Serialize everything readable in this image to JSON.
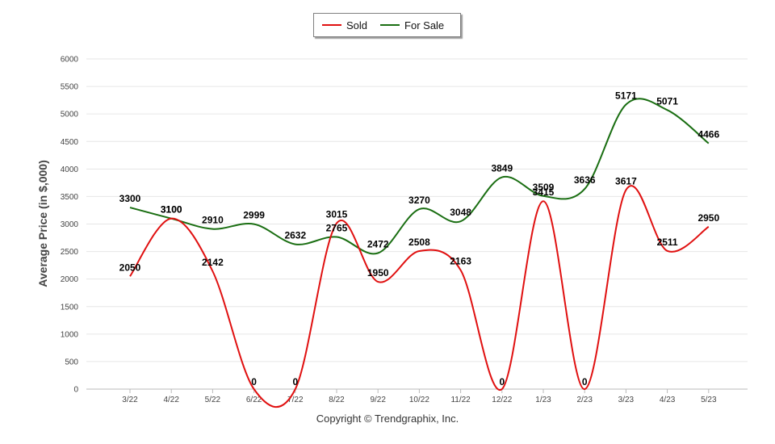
{
  "chart_data": {
    "type": "line",
    "title": "",
    "xlabel": "",
    "ylabel": "Average Price (in $,000)",
    "ylim": [
      0,
      6000
    ],
    "yticks": [
      0,
      500,
      1000,
      1500,
      2000,
      2500,
      3000,
      3500,
      4000,
      4500,
      5000,
      5500,
      6000
    ],
    "categories": [
      "3/22",
      "4/22",
      "5/22",
      "6/22",
      "7/22",
      "8/22",
      "9/22",
      "10/22",
      "11/22",
      "12/22",
      "1/23",
      "2/23",
      "3/23",
      "4/23",
      "5/23"
    ],
    "series": [
      {
        "name": "Sold",
        "color": "#e01010",
        "values": [
          2050,
          3100,
          2142,
          0,
          0,
          3015,
          1950,
          2508,
          2163,
          0,
          3415,
          0,
          3617,
          2511,
          2950
        ]
      },
      {
        "name": "For Sale",
        "color": "#1a6e12",
        "values": [
          3300,
          3100,
          2910,
          2999,
          2632,
          2765,
          2472,
          3270,
          3048,
          3849,
          3509,
          3636,
          5171,
          5071,
          4466
        ]
      }
    ],
    "legend_position": "top-center",
    "grid": true
  },
  "footer": {
    "copyright": "Copyright © Trendgraphix, Inc."
  }
}
